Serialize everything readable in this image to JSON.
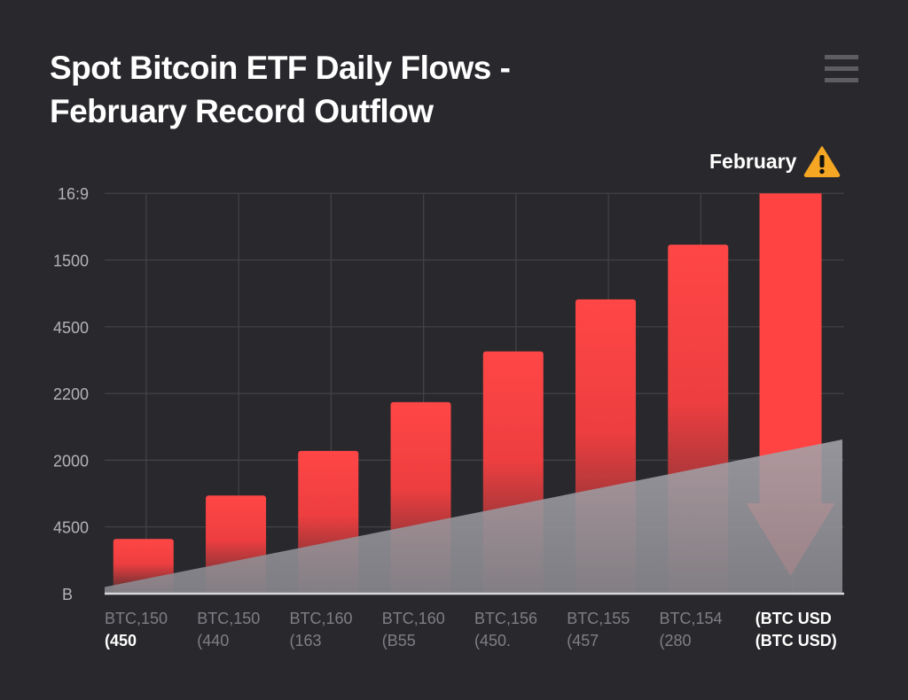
{
  "header": {
    "title_line1": "Spot Bitcoin ETF Daily Flows -",
    "title_line2": "February Record Outflow",
    "menu_icon": "hamburger-menu-icon"
  },
  "annotation": {
    "text": "February",
    "icon": "warning-icon",
    "icon_color": "#f5a623"
  },
  "chart_data": {
    "type": "bar",
    "title": "Spot Bitcoin ETF Daily Flows - February Record Outflow",
    "y_tick_labels": [
      "B",
      "4500",
      "2000",
      "2200",
      "4500",
      "1500",
      "16:9"
    ],
    "categories": [
      [
        "BTC,150",
        "(450"
      ],
      [
        "BTC,150",
        "(440"
      ],
      [
        "BTC,160",
        "(163"
      ],
      [
        "BTC,160",
        "(B55"
      ],
      [
        "BTC,156",
        "(450."
      ],
      [
        "BTC,155",
        "(457"
      ],
      [
        "BTC,154",
        "(280"
      ],
      [
        "(BTC USD",
        "(BTC USD)"
      ]
    ],
    "values_in_tick_steps": [
      0.82,
      1.47,
      2.14,
      2.87,
      3.63,
      4.41,
      5.23,
      6.0
    ],
    "last_bar_style": "down-arrow",
    "area_series": {
      "start": 0.1,
      "end": 2.31
    },
    "grid": true,
    "colors": {
      "bar": "#ff4444",
      "bar_fade": "#3a2a2c",
      "area": "#a0a0a6",
      "arrow": "#ff4242",
      "grid": "#444448"
    }
  }
}
